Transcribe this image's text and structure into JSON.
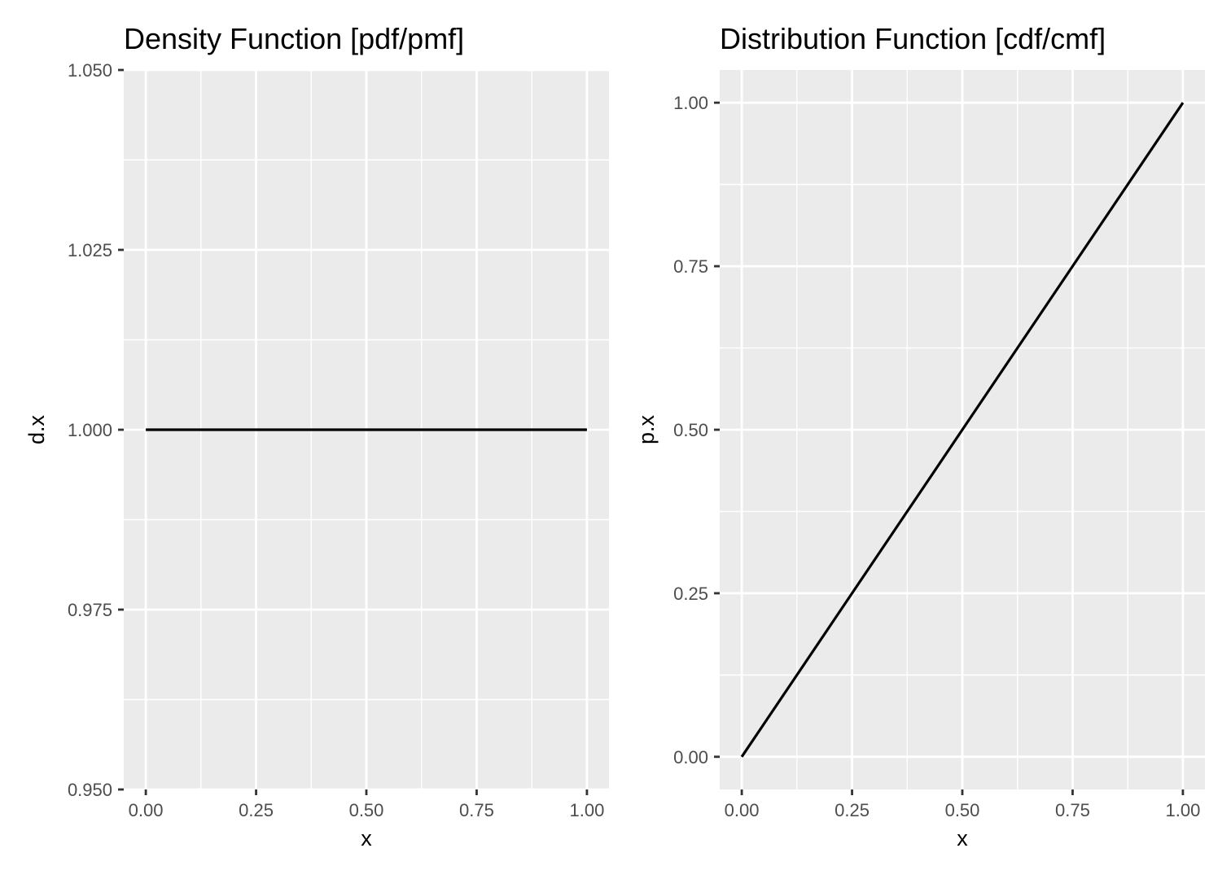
{
  "chart_data": [
    {
      "type": "line",
      "title": "Density Function [pdf/pmf]",
      "xlabel": "x",
      "ylabel": "d.x",
      "xlim": [
        -0.05,
        1.05
      ],
      "ylim": [
        0.95,
        1.05
      ],
      "x_major_ticks": [
        0,
        0.25,
        0.5,
        0.75,
        1
      ],
      "x_tick_labels": [
        "0.00",
        "0.25",
        "0.50",
        "0.75",
        "1.00"
      ],
      "x_minor_ticks": [
        0.125,
        0.375,
        0.625,
        0.875
      ],
      "y_major_ticks": [
        0.95,
        0.975,
        1,
        1.025,
        1.05
      ],
      "y_tick_labels": [
        "0.950",
        "0.975",
        "1.000",
        "1.025",
        "1.050"
      ],
      "y_minor_ticks": [
        0.9625,
        0.9875,
        1.0125,
        1.0375
      ],
      "grid": true,
      "legend": "none",
      "series": [
        {
          "x": [
            0,
            1
          ],
          "y": [
            1,
            1
          ],
          "color": "#000000"
        }
      ]
    },
    {
      "type": "line",
      "title": "Distribution Function [cdf/cmf]",
      "xlabel": "x",
      "ylabel": "p.x",
      "xlim": [
        -0.05,
        1.05
      ],
      "ylim": [
        -0.05,
        1.05
      ],
      "x_major_ticks": [
        0,
        0.25,
        0.5,
        0.75,
        1
      ],
      "x_tick_labels": [
        "0.00",
        "0.25",
        "0.50",
        "0.75",
        "1.00"
      ],
      "x_minor_ticks": [
        0.125,
        0.375,
        0.625,
        0.875
      ],
      "y_major_ticks": [
        0,
        0.25,
        0.5,
        0.75,
        1
      ],
      "y_tick_labels": [
        "0.00",
        "0.25",
        "0.50",
        "0.75",
        "1.00"
      ],
      "y_minor_ticks": [
        0.125,
        0.375,
        0.625,
        0.875
      ],
      "grid": true,
      "legend": "none",
      "series": [
        {
          "x": [
            0,
            1
          ],
          "y": [
            0,
            1
          ],
          "color": "#000000"
        }
      ]
    }
  ]
}
